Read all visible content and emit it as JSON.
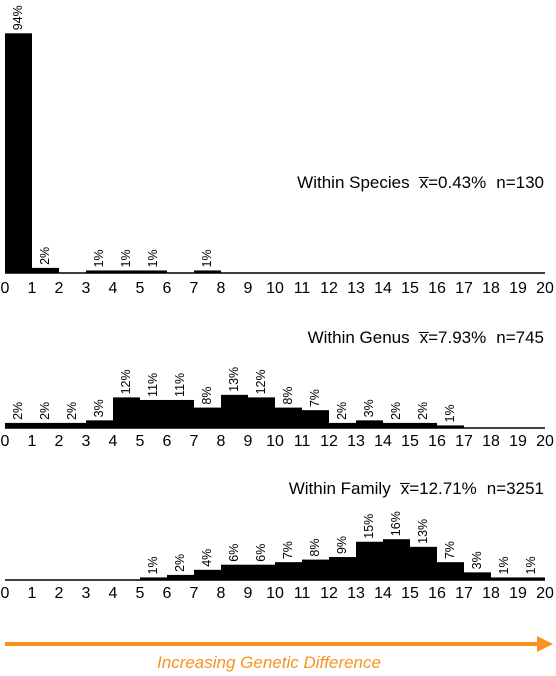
{
  "colors": {
    "bars": "#000000",
    "accent": "#f7931e"
  },
  "chart_data": [
    {
      "type": "bar",
      "title": "Within Species",
      "mean_label": "x̅=0.43%",
      "n_label": "n=130",
      "x_ticks": [
        "0",
        "1",
        "2",
        "3",
        "4",
        "5",
        "6",
        "7",
        "8",
        "9",
        "10",
        "11",
        "12",
        "13",
        "14",
        "15",
        "16",
        "17",
        "18",
        "19",
        "20"
      ],
      "bins": [
        {
          "start": 0,
          "value": 94,
          "label": "94%"
        },
        {
          "start": 1,
          "value": 2,
          "label": "2%"
        },
        {
          "start": 3,
          "value": 1,
          "label": "1%"
        },
        {
          "start": 4,
          "value": 1,
          "label": "1%"
        },
        {
          "start": 5,
          "value": 1,
          "label": "1%"
        },
        {
          "start": 7,
          "value": 1,
          "label": "1%"
        }
      ],
      "ylim": [
        0,
        94
      ]
    },
    {
      "type": "bar",
      "title": "Within Genus",
      "mean_label": "x̅=7.93%",
      "n_label": "n=745",
      "x_ticks": [
        "0",
        "1",
        "2",
        "3",
        "4",
        "5",
        "6",
        "7",
        "8",
        "9",
        "10",
        "11",
        "12",
        "13",
        "14",
        "15",
        "16",
        "17",
        "18",
        "19",
        "20"
      ],
      "bins": [
        {
          "start": 0,
          "value": 2,
          "label": "2%"
        },
        {
          "start": 1,
          "value": 2,
          "label": "2%"
        },
        {
          "start": 2,
          "value": 2,
          "label": "2%"
        },
        {
          "start": 3,
          "value": 3,
          "label": "3%"
        },
        {
          "start": 4,
          "value": 12,
          "label": "12%"
        },
        {
          "start": 5,
          "value": 11,
          "label": "11%"
        },
        {
          "start": 6,
          "value": 11,
          "label": "11%"
        },
        {
          "start": 7,
          "value": 8,
          "label": "8%"
        },
        {
          "start": 8,
          "value": 13,
          "label": "13%"
        },
        {
          "start": 9,
          "value": 12,
          "label": "12%"
        },
        {
          "start": 10,
          "value": 8,
          "label": "8%"
        },
        {
          "start": 11,
          "value": 7,
          "label": "7%"
        },
        {
          "start": 12,
          "value": 2,
          "label": "2%"
        },
        {
          "start": 13,
          "value": 3,
          "label": "3%"
        },
        {
          "start": 14,
          "value": 2,
          "label": "2%"
        },
        {
          "start": 15,
          "value": 2,
          "label": "2%"
        },
        {
          "start": 16,
          "value": 1,
          "label": "1%"
        }
      ],
      "ylim": [
        0,
        94
      ]
    },
    {
      "type": "bar",
      "title": "Within Family",
      "mean_label": "x̅=12.71%",
      "n_label": "n=3251",
      "x_ticks": [
        "0",
        "1",
        "2",
        "3",
        "4",
        "5",
        "6",
        "7",
        "8",
        "9",
        "10",
        "11",
        "12",
        "13",
        "14",
        "15",
        "16",
        "17",
        "18",
        "19",
        "20"
      ],
      "bins": [
        {
          "start": 5,
          "value": 1,
          "label": "1%"
        },
        {
          "start": 6,
          "value": 2,
          "label": "2%"
        },
        {
          "start": 7,
          "value": 4,
          "label": "4%"
        },
        {
          "start": 8,
          "value": 6,
          "label": "6%"
        },
        {
          "start": 9,
          "value": 6,
          "label": "6%"
        },
        {
          "start": 10,
          "value": 7,
          "label": "7%"
        },
        {
          "start": 11,
          "value": 8,
          "label": "8%"
        },
        {
          "start": 12,
          "value": 9,
          "label": "9%"
        },
        {
          "start": 13,
          "value": 15,
          "label": "15%"
        },
        {
          "start": 14,
          "value": 16,
          "label": "16%"
        },
        {
          "start": 15,
          "value": 13,
          "label": "13%"
        },
        {
          "start": 16,
          "value": 7,
          "label": "7%"
        },
        {
          "start": 17,
          "value": 3,
          "label": "3%"
        },
        {
          "start": 18,
          "value": 1,
          "label": "1%"
        },
        {
          "start": 19,
          "value": 1,
          "label": "1%"
        }
      ],
      "ylim": [
        0,
        94
      ]
    }
  ],
  "xlabel": "Increasing Genetic Difference"
}
